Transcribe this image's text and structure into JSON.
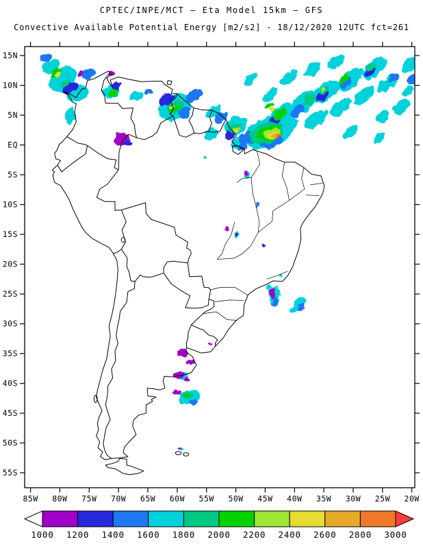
{
  "header": {
    "title_line1": "CPTEC/INPE/MCT — Eta Model 15km — GFS",
    "title_line2": "Convective Available Potential Energy [m2/s2] - 18/12/2020 12UTC fct=261"
  },
  "map": {
    "lat_labels": [
      "15N",
      "10N",
      "5N",
      "EQ",
      "5S",
      "10S",
      "15S",
      "20S",
      "25S",
      "30S",
      "35S",
      "40S",
      "45S",
      "50S",
      "55S"
    ],
    "lat_values": [
      15,
      10,
      5,
      0,
      -5,
      -10,
      -15,
      -20,
      -25,
      -30,
      -35,
      -40,
      -45,
      -50,
      -55
    ],
    "lon_labels": [
      "85W",
      "80W",
      "75W",
      "70W",
      "65W",
      "60W",
      "55W",
      "50W",
      "45W",
      "40W",
      "35W",
      "30W",
      "25W",
      "20W"
    ],
    "lon_values": [
      -85,
      -80,
      -75,
      -70,
      -65,
      -60,
      -55,
      -50,
      -45,
      -40,
      -35,
      -30,
      -25,
      -20
    ]
  },
  "colorbar": {
    "labels": [
      "1000",
      "1200",
      "1400",
      "1600",
      "1800",
      "2000",
      "2200",
      "2400",
      "2600",
      "2800",
      "3000"
    ],
    "segment_colors": [
      "#a000c8",
      "#2828dc",
      "#1e78f0",
      "#00d2dc",
      "#00c882",
      "#00d200",
      "#a0e632",
      "#e6dc32",
      "#e6aa28",
      "#f07828"
    ],
    "left_arrow_color": "#ffffff",
    "right_arrow_color": "#fa3c3c"
  },
  "chart_data": {
    "type": "heatmap",
    "variable": "Convective Available Potential Energy",
    "units": "m2/s2",
    "institution": "CPTEC/INPE/MCT",
    "model": "Eta Model 15km",
    "forcing": "GFS",
    "valid": "18/12/2020 12UTC",
    "forecast": "fct=261",
    "levels": [
      1000,
      1200,
      1400,
      1600,
      1800,
      2000,
      2200,
      2400,
      2600,
      2800,
      3000
    ],
    "cell_columns": [
      "lon",
      "lat",
      "rx_deg",
      "ry_deg",
      "rotation_deg",
      "cape_m2s2"
    ],
    "cape_cells": [
      [
        -81.5,
        13.2,
        1.6,
        1.0,
        -35,
        1700
      ],
      [
        -79.5,
        11.0,
        2.6,
        1.8,
        -35,
        1700
      ],
      [
        -77.0,
        8.6,
        2.0,
        1.4,
        -30,
        1700
      ],
      [
        -78.2,
        5.0,
        0.8,
        1.5,
        10,
        1700
      ],
      [
        -75.2,
        11.8,
        1.2,
        0.8,
        -35,
        1500
      ],
      [
        -78.2,
        9.6,
        1.3,
        0.9,
        -30,
        1300
      ],
      [
        -82.3,
        14.6,
        0.9,
        0.6,
        -35,
        1500
      ],
      [
        -71.3,
        9.0,
        1.5,
        1.0,
        -30,
        1700
      ],
      [
        -70.3,
        10.0,
        0.9,
        0.6,
        -30,
        1300
      ],
      [
        -67.0,
        8.2,
        1.2,
        0.7,
        -30,
        1700
      ],
      [
        -64.9,
        8.8,
        0.8,
        0.5,
        -30,
        1500
      ],
      [
        -60.3,
        6.4,
        3.0,
        2.1,
        -25,
        1700
      ],
      [
        -61.8,
        7.6,
        1.4,
        0.9,
        -28,
        1300
      ],
      [
        -57.2,
        8.2,
        1.6,
        0.9,
        -35,
        1500
      ],
      [
        -58.8,
        5.4,
        1.1,
        0.7,
        -28,
        1500
      ],
      [
        -53.8,
        5.6,
        1.5,
        0.9,
        -32,
        1700
      ],
      [
        -52.5,
        4.6,
        1.3,
        0.9,
        -30,
        1500
      ],
      [
        -54.2,
        1.8,
        1.3,
        0.9,
        -28,
        1700
      ],
      [
        -50.0,
        3.2,
        2.2,
        1.4,
        -28,
        1700
      ],
      [
        -49.4,
        0.4,
        1.5,
        1.0,
        -20,
        1700
      ],
      [
        -48.9,
        -0.3,
        0.9,
        0.6,
        -20,
        1500
      ],
      [
        -51.0,
        1.8,
        1.0,
        0.7,
        -25,
        1300
      ],
      [
        -44.5,
        2.0,
        4.2,
        2.5,
        -18,
        1700
      ],
      [
        -47.9,
        1.3,
        1.7,
        1.1,
        -24,
        1500
      ],
      [
        -44.0,
        0.6,
        2.0,
        1.1,
        -18,
        1500
      ],
      [
        -41.0,
        3.4,
        1.8,
        1.0,
        -30,
        1700
      ],
      [
        -42.0,
        5.2,
        2.6,
        1.4,
        -36,
        1700
      ],
      [
        -38.6,
        7.0,
        2.9,
        1.4,
        -40,
        1700
      ],
      [
        -34.5,
        9.0,
        2.8,
        1.3,
        -40,
        1700
      ],
      [
        -30.4,
        11.0,
        2.7,
        1.3,
        -40,
        1700
      ],
      [
        -26.3,
        12.9,
        2.5,
        1.2,
        -40,
        1700
      ],
      [
        -36.3,
        4.3,
        2.5,
        1.1,
        -38,
        1700
      ],
      [
        -32.2,
        6.3,
        2.2,
        1.0,
        -40,
        1700
      ],
      [
        -28.2,
        8.3,
        2.2,
        1.0,
        -40,
        1700
      ],
      [
        -24.2,
        10.3,
        2.1,
        1.0,
        -40,
        1700
      ],
      [
        -41.0,
        11.2,
        1.8,
        0.9,
        -40,
        1700
      ],
      [
        -37.0,
        12.7,
        1.8,
        0.9,
        -40,
        1700
      ],
      [
        -33.0,
        13.9,
        1.7,
        0.9,
        -40,
        1700
      ],
      [
        -44.3,
        8.3,
        1.6,
        0.8,
        -40,
        1700
      ],
      [
        -47.6,
        11.0,
        1.3,
        0.7,
        -40,
        1700
      ],
      [
        -21.8,
        6.4,
        1.6,
        1.0,
        -40,
        1700
      ],
      [
        -20.3,
        13.5,
        1.6,
        1.0,
        -40,
        1700
      ],
      [
        -19.8,
        11.0,
        1.1,
        0.8,
        -40,
        1500
      ],
      [
        -20.6,
        9.0,
        1.0,
        0.7,
        -40,
        1700
      ],
      [
        -25.0,
        4.7,
        1.3,
        0.8,
        -36,
        1700
      ],
      [
        -30.5,
        2.3,
        1.6,
        0.8,
        -40,
        1700
      ],
      [
        -25.6,
        1.1,
        1.1,
        0.6,
        -40,
        1700
      ],
      [
        -35.3,
        8.3,
        1.3,
        0.7,
        -40,
        1300
      ],
      [
        -31.3,
        10.5,
        1.2,
        0.7,
        -40,
        1500
      ],
      [
        -27.2,
        12.3,
        1.1,
        0.6,
        -40,
        1300
      ],
      [
        -23.0,
        11.3,
        1.1,
        0.6,
        -40,
        1500
      ],
      [
        -39.5,
        5.7,
        1.4,
        0.8,
        -38,
        1500
      ],
      [
        -43.5,
        4.0,
        1.2,
        0.7,
        -30,
        1300
      ],
      [
        -55.2,
        -2.0,
        0.35,
        0.3,
        0,
        1700
      ],
      [
        -80.6,
        12.1,
        1.0,
        0.7,
        -35,
        2100
      ],
      [
        -79.0,
        10.4,
        0.8,
        0.5,
        -35,
        1900
      ],
      [
        -71.0,
        8.8,
        0.7,
        0.5,
        -30,
        2100
      ],
      [
        -60.3,
        6.3,
        1.6,
        1.0,
        -25,
        1900
      ],
      [
        -60.6,
        6.1,
        0.9,
        0.6,
        -25,
        2100
      ],
      [
        -50.1,
        2.8,
        1.3,
        0.8,
        -26,
        1900
      ],
      [
        -44.8,
        2.0,
        3.0,
        1.7,
        -18,
        1900
      ],
      [
        -44.4,
        1.9,
        2.1,
        1.2,
        -18,
        2100
      ],
      [
        -42.4,
        5.2,
        1.3,
        0.8,
        -35,
        2100
      ],
      [
        -37.5,
        7.5,
        1.2,
        0.7,
        -40,
        1900
      ],
      [
        -31.6,
        11.0,
        1.0,
        0.6,
        -40,
        2100
      ],
      [
        -34.9,
        9.3,
        1.0,
        0.5,
        -40,
        1900
      ],
      [
        -27.0,
        13.0,
        0.9,
        0.5,
        -40,
        1900
      ],
      [
        -44.4,
        6.5,
        0.9,
        0.5,
        -36,
        2100
      ],
      [
        -43.9,
        1.85,
        1.5,
        0.85,
        -18,
        2300
      ],
      [
        -43.5,
        1.75,
        1.05,
        0.6,
        -18,
        2500
      ],
      [
        -49.8,
        2.6,
        0.7,
        0.45,
        -26,
        2300
      ],
      [
        -49.6,
        2.4,
        0.45,
        0.3,
        -26,
        2500
      ],
      [
        -80.3,
        11.8,
        0.5,
        0.35,
        -35,
        2500
      ],
      [
        -60.8,
        6.3,
        0.45,
        0.3,
        -25,
        2500
      ],
      [
        -43.7,
        5.8,
        0.6,
        0.35,
        -36,
        2500
      ],
      [
        -35.0,
        9.4,
        0.5,
        0.3,
        -40,
        2300
      ],
      [
        -43.1,
        1.65,
        0.75,
        0.45,
        -18,
        2700
      ],
      [
        -42.8,
        1.55,
        0.5,
        0.3,
        -18,
        2900
      ],
      [
        -42.6,
        1.5,
        0.28,
        0.18,
        -18,
        3100
      ],
      [
        -48.2,
        -4.9,
        0.45,
        0.6,
        0,
        1700
      ],
      [
        -49.8,
        -15.1,
        0.5,
        0.55,
        0,
        1700
      ],
      [
        -49.8,
        -15.2,
        0.28,
        0.3,
        0,
        1300
      ],
      [
        -46.3,
        -10.0,
        0.3,
        0.3,
        0,
        1500
      ],
      [
        -42.3,
        -21.9,
        0.3,
        0.25,
        0,
        1700
      ],
      [
        -43.4,
        -25.2,
        1.0,
        1.7,
        8,
        1700
      ],
      [
        -43.3,
        -26.4,
        0.5,
        0.8,
        8,
        1500
      ],
      [
        -44.4,
        -23.8,
        0.4,
        0.5,
        0,
        1700
      ],
      [
        -39.5,
        -26.9,
        1.7,
        0.7,
        -42,
        1700
      ],
      [
        -39.0,
        -27.2,
        0.8,
        0.4,
        -42,
        1500
      ],
      [
        -58.0,
        -42.3,
        1.9,
        1.2,
        -15,
        1700
      ],
      [
        -58.3,
        -42.0,
        1.0,
        0.65,
        -15,
        1900
      ],
      [
        -58.4,
        -41.9,
        0.55,
        0.38,
        -15,
        2100
      ],
      [
        -57.2,
        -43.1,
        0.7,
        0.5,
        -15,
        1500
      ],
      [
        -58.9,
        -38.9,
        0.8,
        0.6,
        0,
        1700
      ],
      [
        -59.3,
        -51.0,
        0.45,
        0.35,
        0,
        1700
      ],
      [
        -59.4,
        -50.9,
        0.22,
        0.18,
        0,
        2100
      ],
      [
        -45.2,
        -17.0,
        0.28,
        0.28,
        0,
        1300
      ],
      [
        -69.3,
        0.8,
        1.3,
        1.1,
        0,
        1100
      ],
      [
        -68.4,
        0.3,
        0.7,
        0.5,
        0,
        1300
      ],
      [
        -70.0,
        1.7,
        0.5,
        0.4,
        0,
        1100
      ],
      [
        -71.3,
        11.9,
        0.7,
        0.4,
        -30,
        1100
      ],
      [
        -76.4,
        12.0,
        0.5,
        0.35,
        0,
        1100
      ],
      [
        -51.5,
        -14.1,
        0.4,
        0.5,
        0,
        1100
      ],
      [
        -48.3,
        -4.6,
        0.3,
        0.4,
        0,
        1100
      ],
      [
        -43.7,
        -24.9,
        0.55,
        0.95,
        8,
        1100
      ],
      [
        -59.0,
        -34.8,
        0.9,
        0.7,
        0,
        1100
      ],
      [
        -57.8,
        -36.3,
        0.7,
        0.5,
        0,
        1100
      ],
      [
        -54.5,
        -33.6,
        0.3,
        0.25,
        0,
        1100
      ],
      [
        -59.7,
        -38.6,
        0.85,
        0.6,
        0,
        1100
      ],
      [
        -58.3,
        -39.5,
        0.5,
        0.4,
        0,
        1100
      ],
      [
        -59.9,
        -41.4,
        0.65,
        0.5,
        0,
        1100
      ],
      [
        -59.6,
        -50.8,
        0.25,
        0.2,
        0,
        1100
      ]
    ]
  }
}
